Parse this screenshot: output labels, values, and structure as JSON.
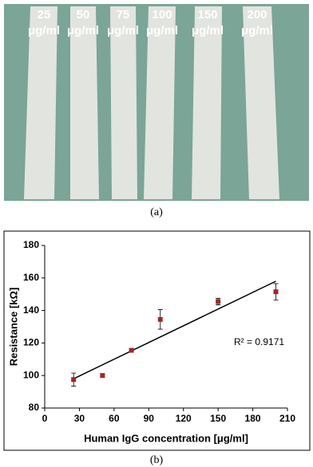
{
  "photo": {
    "labels": [
      {
        "value": "25",
        "unit": "μg/ml"
      },
      {
        "value": "50",
        "unit": "μg/ml"
      },
      {
        "value": "75",
        "unit": "μg/ml"
      },
      {
        "value": "100",
        "unit": "μg/ml"
      },
      {
        "value": "150",
        "unit": "μg/ml"
      },
      {
        "value": "200",
        "unit": "μg/ml"
      }
    ],
    "caption": "(a)"
  },
  "chart_data": {
    "type": "scatter",
    "caption": "(b)",
    "x_label": "Human IgG concentration [μg/ml]",
    "y_label": "Resistance [kΩ]",
    "x": [
      25,
      50,
      75,
      100,
      150,
      200
    ],
    "values": [
      97.5,
      100,
      115.5,
      134.5,
      145.5,
      151.5
    ],
    "errors": [
      4,
      1,
      1,
      6,
      2,
      5
    ],
    "color": "#9b2a2a",
    "trendline": {
      "x": [
        25,
        200
      ],
      "y": [
        98,
        158
      ],
      "color": "#000000"
    },
    "annotation": "R² = 0.9171",
    "xlim": [
      0,
      210
    ],
    "xticks": [
      0,
      30,
      60,
      90,
      120,
      150,
      180,
      210
    ],
    "ylim": [
      80,
      180
    ],
    "yticks": [
      80,
      100,
      120,
      140,
      160,
      180
    ]
  }
}
